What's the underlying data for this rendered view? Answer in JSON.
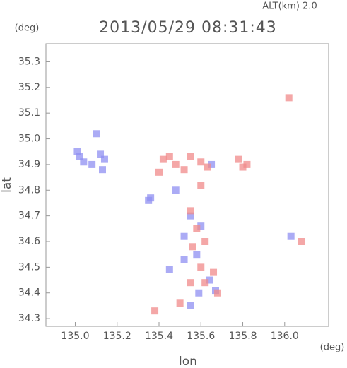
{
  "chart_data": {
    "type": "scatter",
    "title": "2013/05/29 08:31:43",
    "annotation": "ALT(km) 2.0",
    "x_label": "lon",
    "y_label": "lat",
    "x_unit": "(deg)",
    "y_unit": "(deg)",
    "xlim": [
      134.86,
      136.21
    ],
    "ylim": [
      34.27,
      35.37
    ],
    "xticks": [
      {
        "value": 135.0,
        "label": "135.0"
      },
      135.2,
      135.4,
      135.6,
      135.8,
      {
        "value": 136.0,
        "label": "136.0"
      }
    ],
    "yticks": [
      34.3,
      34.4,
      34.5,
      34.6,
      34.7,
      34.8,
      34.9,
      {
        "value": 35.0,
        "label": "35.0"
      },
      35.1,
      35.2,
      35.3
    ],
    "grid": false,
    "series": [
      {
        "color": "#8f8ff2",
        "x": [
          135.02,
          135.04,
          135.01,
          135.12,
          135.14,
          135.13,
          135.08,
          135.35,
          135.36,
          135.55,
          135.52,
          135.58,
          135.64,
          135.67,
          135.59,
          135.52,
          135.6,
          135.55,
          135.45,
          136.03,
          135.48,
          135.65,
          135.1
        ],
        "values": [
          34.93,
          34.91,
          34.95,
          34.94,
          34.92,
          34.88,
          34.9,
          34.76,
          34.77,
          34.7,
          34.62,
          34.55,
          34.45,
          34.41,
          34.4,
          34.53,
          34.66,
          34.35,
          34.49,
          34.62,
          34.8,
          34.9,
          35.02
        ]
      },
      {
        "color": "#f08a8a",
        "x": [
          135.42,
          135.45,
          135.48,
          135.55,
          135.6,
          135.63,
          135.78,
          135.8,
          135.82,
          135.6,
          135.55,
          135.58,
          135.62,
          135.56,
          135.6,
          135.66,
          135.62,
          135.55,
          135.68,
          135.38,
          135.5,
          136.02,
          136.08,
          135.4,
          135.52
        ],
        "values": [
          34.92,
          34.93,
          34.9,
          34.93,
          34.91,
          34.89,
          34.92,
          34.89,
          34.9,
          34.82,
          34.72,
          34.65,
          34.6,
          34.58,
          34.5,
          34.48,
          34.44,
          34.44,
          34.4,
          34.33,
          34.36,
          35.16,
          34.6,
          34.87,
          34.88
        ]
      }
    ]
  }
}
